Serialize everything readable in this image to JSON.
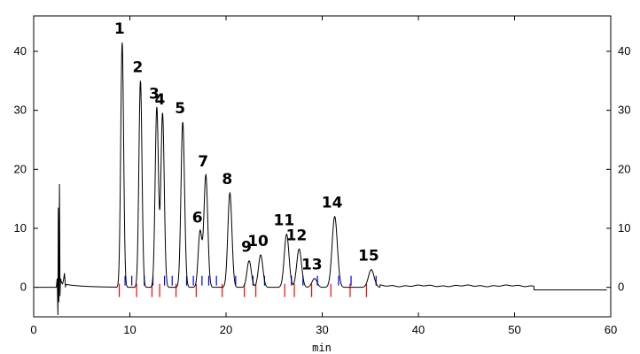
{
  "chart_data": {
    "type": "line",
    "title": "",
    "xlabel": "min",
    "ylabel": "",
    "xlim": [
      0,
      60
    ],
    "ylim": [
      -5,
      46
    ],
    "x_ticks": [
      0,
      10,
      20,
      30,
      40,
      50,
      60
    ],
    "y_ticks": [
      0,
      10,
      20,
      30,
      40
    ],
    "grid": false,
    "legend": "none",
    "colors": {
      "trace": "#000000",
      "baseline_marker": "#ff0000",
      "peak_marker": "#0000ff"
    },
    "peaks": [
      {
        "label": "1",
        "rt": 9.2,
        "height": 41.5
      },
      {
        "label": "2",
        "rt": 11.1,
        "height": 35.0
      },
      {
        "label": "3",
        "rt": 12.8,
        "height": 30.5
      },
      {
        "label": "4",
        "rt": 13.4,
        "height": 29.5
      },
      {
        "label": "5",
        "rt": 15.5,
        "height": 28.0
      },
      {
        "label": "6",
        "rt": 17.3,
        "height": 9.5
      },
      {
        "label": "7",
        "rt": 17.9,
        "height": 19.0
      },
      {
        "label": "8",
        "rt": 20.4,
        "height": 16.0
      },
      {
        "label": "9",
        "rt": 22.4,
        "height": 4.5
      },
      {
        "label": "10",
        "rt": 23.6,
        "height": 5.5
      },
      {
        "label": "11",
        "rt": 26.3,
        "height": 9.0
      },
      {
        "label": "12",
        "rt": 27.6,
        "height": 6.5
      },
      {
        "label": "13",
        "rt": 29.2,
        "height": 1.5
      },
      {
        "label": "14",
        "rt": 31.3,
        "height": 12.0
      },
      {
        "label": "15",
        "rt": 35.1,
        "height": 3.0
      }
    ],
    "baseline_markers": [
      8.9,
      10.7,
      12.3,
      13.1,
      14.8,
      16.9,
      19.6,
      21.9,
      23.1,
      26.1,
      27.1,
      28.9,
      30.9,
      32.9,
      34.6
    ],
    "peak_end_markers": [
      9.5,
      10.2,
      11.5,
      12.4,
      13.6,
      14.4,
      15.9,
      16.6,
      17.5,
      18.2,
      19.0,
      21.0,
      22.8,
      24.0,
      26.8,
      28.0,
      29.5,
      31.7,
      33.0,
      35.6
    ]
  }
}
